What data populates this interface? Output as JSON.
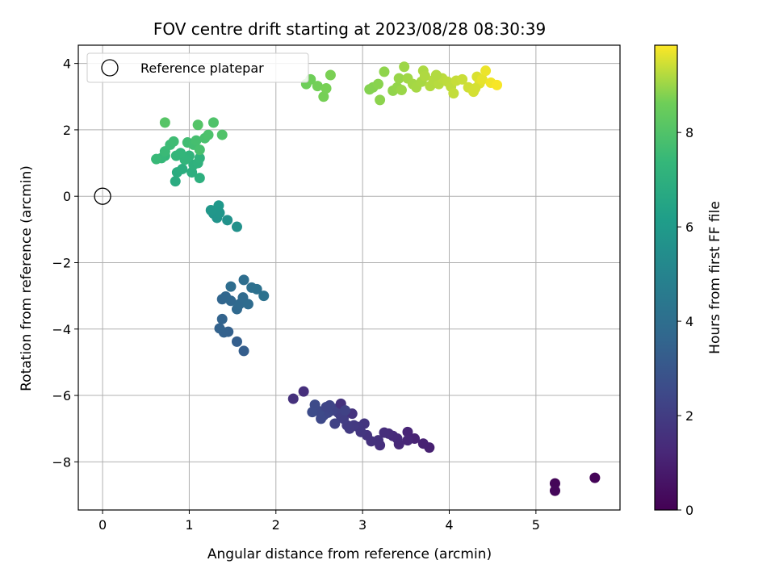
{
  "chart_data": {
    "type": "scatter",
    "title": "FOV centre drift starting at 2023/08/28 08:30:39",
    "xlabel": "Angular distance from reference (arcmin)",
    "ylabel": "Rotation from reference (arcmin)",
    "xlim": [
      -0.28,
      5.97
    ],
    "ylim": [
      -9.45,
      4.55
    ],
    "xticks": [
      0,
      1,
      2,
      3,
      4,
      5
    ],
    "xtick_labels": [
      "0",
      "1",
      "2",
      "3",
      "4",
      "5"
    ],
    "yticks": [
      -8,
      -6,
      -4,
      -2,
      0,
      2,
      4
    ],
    "ytick_labels": [
      "−8",
      "−6",
      "−4",
      "−2",
      "0",
      "2",
      "4"
    ],
    "grid": true,
    "legend": {
      "placement": "top-left",
      "entries": [
        "Reference platepar"
      ]
    },
    "colorbar": {
      "label": "Hours from first FF file",
      "range": [
        0,
        9.85
      ],
      "ticks": [
        0,
        2,
        4,
        6,
        8
      ],
      "tick_labels": [
        "0",
        "2",
        "4",
        "6",
        "8"
      ],
      "colormap": "viridis"
    },
    "reference_point": {
      "x": 0,
      "y": 0,
      "label": "Reference platepar"
    },
    "points": [
      {
        "x": 5.68,
        "y": -8.48,
        "h": 0.1
      },
      {
        "x": 5.22,
        "y": -8.65,
        "h": 0.15
      },
      {
        "x": 5.22,
        "y": -8.87,
        "h": 0.2
      },
      {
        "x": 3.77,
        "y": -7.57,
        "h": 1.0
      },
      {
        "x": 3.7,
        "y": -7.45,
        "h": 1.05
      },
      {
        "x": 3.6,
        "y": -7.3,
        "h": 1.1
      },
      {
        "x": 3.52,
        "y": -7.1,
        "h": 1.15
      },
      {
        "x": 3.52,
        "y": -7.35,
        "h": 1.2
      },
      {
        "x": 3.42,
        "y": -7.47,
        "h": 1.25
      },
      {
        "x": 3.4,
        "y": -7.3,
        "h": 1.3
      },
      {
        "x": 3.35,
        "y": -7.22,
        "h": 1.35
      },
      {
        "x": 3.3,
        "y": -7.15,
        "h": 1.4
      },
      {
        "x": 3.25,
        "y": -7.12,
        "h": 1.45
      },
      {
        "x": 3.2,
        "y": -7.5,
        "h": 1.5
      },
      {
        "x": 3.18,
        "y": -7.35,
        "h": 1.55
      },
      {
        "x": 3.1,
        "y": -7.38,
        "h": 1.6
      },
      {
        "x": 3.05,
        "y": -7.2,
        "h": 1.65
      },
      {
        "x": 3.02,
        "y": -6.85,
        "h": 1.7
      },
      {
        "x": 2.98,
        "y": -7.1,
        "h": 1.75
      },
      {
        "x": 2.95,
        "y": -6.95,
        "h": 1.8
      },
      {
        "x": 2.9,
        "y": -6.9,
        "h": 1.85
      },
      {
        "x": 2.85,
        "y": -7.0,
        "h": 1.9
      },
      {
        "x": 2.82,
        "y": -6.9,
        "h": 1.95
      },
      {
        "x": 2.78,
        "y": -6.7,
        "h": 2.0
      },
      {
        "x": 2.75,
        "y": -6.62,
        "h": 2.05
      },
      {
        "x": 2.72,
        "y": -6.52,
        "h": 2.1
      },
      {
        "x": 2.7,
        "y": -6.4,
        "h": 2.15
      },
      {
        "x": 2.68,
        "y": -6.85,
        "h": 2.2
      },
      {
        "x": 2.65,
        "y": -6.45,
        "h": 2.25
      },
      {
        "x": 2.62,
        "y": -6.3,
        "h": 2.3
      },
      {
        "x": 2.6,
        "y": -6.52,
        "h": 2.35
      },
      {
        "x": 2.55,
        "y": -6.6,
        "h": 2.4
      },
      {
        "x": 2.52,
        "y": -6.7,
        "h": 2.45
      },
      {
        "x": 2.5,
        "y": -6.48,
        "h": 2.5
      },
      {
        "x": 2.45,
        "y": -6.28,
        "h": 2.55
      },
      {
        "x": 2.42,
        "y": -6.5,
        "h": 2.6
      },
      {
        "x": 2.32,
        "y": -5.88,
        "h": 1.5
      },
      {
        "x": 2.2,
        "y": -6.1,
        "h": 1.55
      },
      {
        "x": 2.75,
        "y": -6.25,
        "h": 1.6
      },
      {
        "x": 2.88,
        "y": -6.55,
        "h": 1.65
      },
      {
        "x": 2.58,
        "y": -6.35,
        "h": 2.3
      },
      {
        "x": 2.8,
        "y": -6.45,
        "h": 2.2
      },
      {
        "x": 1.63,
        "y": -4.66,
        "h": 3.3
      },
      {
        "x": 1.55,
        "y": -4.38,
        "h": 3.35
      },
      {
        "x": 1.45,
        "y": -4.08,
        "h": 3.4
      },
      {
        "x": 1.4,
        "y": -4.1,
        "h": 3.45
      },
      {
        "x": 1.35,
        "y": -3.98,
        "h": 3.5
      },
      {
        "x": 1.38,
        "y": -3.7,
        "h": 3.55
      },
      {
        "x": 1.38,
        "y": -3.1,
        "h": 3.6
      },
      {
        "x": 1.42,
        "y": -3.02,
        "h": 3.65
      },
      {
        "x": 1.48,
        "y": -3.15,
        "h": 3.7
      },
      {
        "x": 1.55,
        "y": -3.4,
        "h": 3.75
      },
      {
        "x": 1.58,
        "y": -3.25,
        "h": 3.8
      },
      {
        "x": 1.62,
        "y": -3.05,
        "h": 3.85
      },
      {
        "x": 1.68,
        "y": -3.25,
        "h": 3.9
      },
      {
        "x": 1.48,
        "y": -2.72,
        "h": 3.95
      },
      {
        "x": 1.63,
        "y": -2.52,
        "h": 4.0
      },
      {
        "x": 1.72,
        "y": -2.75,
        "h": 4.05
      },
      {
        "x": 1.78,
        "y": -2.8,
        "h": 4.1
      },
      {
        "x": 1.86,
        "y": -3.0,
        "h": 4.15
      },
      {
        "x": 1.55,
        "y": -0.92,
        "h": 5.6
      },
      {
        "x": 1.44,
        "y": -0.72,
        "h": 5.65
      },
      {
        "x": 1.32,
        "y": -0.65,
        "h": 5.7
      },
      {
        "x": 1.28,
        "y": -0.52,
        "h": 5.75
      },
      {
        "x": 1.35,
        "y": -0.5,
        "h": 5.8
      },
      {
        "x": 1.25,
        "y": -0.42,
        "h": 5.85
      },
      {
        "x": 1.34,
        "y": -0.28,
        "h": 5.9
      },
      {
        "x": 0.84,
        "y": 0.45,
        "h": 6.8
      },
      {
        "x": 0.86,
        "y": 0.72,
        "h": 6.85
      },
      {
        "x": 0.92,
        "y": 0.82,
        "h": 6.9
      },
      {
        "x": 1.03,
        "y": 0.72,
        "h": 6.95
      },
      {
        "x": 1.12,
        "y": 0.55,
        "h": 7.0
      },
      {
        "x": 1.05,
        "y": 0.95,
        "h": 7.05
      },
      {
        "x": 1.1,
        "y": 1.0,
        "h": 7.1
      },
      {
        "x": 1.12,
        "y": 1.15,
        "h": 7.15
      },
      {
        "x": 1.0,
        "y": 1.22,
        "h": 7.2
      },
      {
        "x": 0.95,
        "y": 1.1,
        "h": 7.25
      },
      {
        "x": 0.85,
        "y": 1.22,
        "h": 7.3
      },
      {
        "x": 0.72,
        "y": 1.22,
        "h": 7.35
      },
      {
        "x": 0.68,
        "y": 1.15,
        "h": 7.4
      },
      {
        "x": 0.62,
        "y": 1.12,
        "h": 7.45
      },
      {
        "x": 0.72,
        "y": 1.35,
        "h": 7.5
      },
      {
        "x": 0.78,
        "y": 1.55,
        "h": 7.55
      },
      {
        "x": 0.82,
        "y": 1.65,
        "h": 7.6
      },
      {
        "x": 0.98,
        "y": 1.62,
        "h": 7.65
      },
      {
        "x": 1.05,
        "y": 1.55,
        "h": 7.7
      },
      {
        "x": 1.08,
        "y": 1.68,
        "h": 7.75
      },
      {
        "x": 1.12,
        "y": 1.4,
        "h": 7.8
      },
      {
        "x": 1.18,
        "y": 1.75,
        "h": 7.85
      },
      {
        "x": 1.22,
        "y": 1.85,
        "h": 7.9
      },
      {
        "x": 1.28,
        "y": 2.22,
        "h": 7.95
      },
      {
        "x": 1.38,
        "y": 1.85,
        "h": 8.0
      },
      {
        "x": 1.1,
        "y": 2.15,
        "h": 8.05
      },
      {
        "x": 0.72,
        "y": 2.22,
        "h": 8.1
      },
      {
        "x": 0.9,
        "y": 1.3,
        "h": 7.3
      },
      {
        "x": 2.35,
        "y": 3.38,
        "h": 8.6
      },
      {
        "x": 2.4,
        "y": 3.52,
        "h": 8.62
      },
      {
        "x": 2.48,
        "y": 3.32,
        "h": 8.65
      },
      {
        "x": 2.55,
        "y": 3.0,
        "h": 8.68
      },
      {
        "x": 2.58,
        "y": 3.25,
        "h": 8.7
      },
      {
        "x": 2.63,
        "y": 3.65,
        "h": 8.72
      },
      {
        "x": 3.08,
        "y": 3.22,
        "h": 8.8
      },
      {
        "x": 3.12,
        "y": 3.28,
        "h": 8.82
      },
      {
        "x": 3.18,
        "y": 3.38,
        "h": 8.85
      },
      {
        "x": 3.2,
        "y": 2.9,
        "h": 8.88
      },
      {
        "x": 3.25,
        "y": 3.75,
        "h": 8.9
      },
      {
        "x": 3.35,
        "y": 3.18,
        "h": 8.92
      },
      {
        "x": 3.4,
        "y": 3.28,
        "h": 8.95
      },
      {
        "x": 3.42,
        "y": 3.55,
        "h": 8.98
      },
      {
        "x": 3.45,
        "y": 3.2,
        "h": 9.0
      },
      {
        "x": 3.48,
        "y": 3.9,
        "h": 9.02
      },
      {
        "x": 3.52,
        "y": 3.55,
        "h": 9.05
      },
      {
        "x": 3.58,
        "y": 3.38,
        "h": 9.08
      },
      {
        "x": 3.62,
        "y": 3.28,
        "h": 9.1
      },
      {
        "x": 3.68,
        "y": 3.45,
        "h": 9.12
      },
      {
        "x": 3.7,
        "y": 3.78,
        "h": 9.15
      },
      {
        "x": 3.72,
        "y": 3.62,
        "h": 9.18
      },
      {
        "x": 3.78,
        "y": 3.32,
        "h": 9.2
      },
      {
        "x": 3.82,
        "y": 3.5,
        "h": 9.22
      },
      {
        "x": 3.88,
        "y": 3.38,
        "h": 9.25
      },
      {
        "x": 3.92,
        "y": 3.55,
        "h": 9.28
      },
      {
        "x": 3.98,
        "y": 3.45,
        "h": 9.3
      },
      {
        "x": 4.02,
        "y": 3.3,
        "h": 9.32
      },
      {
        "x": 4.05,
        "y": 3.1,
        "h": 9.35
      },
      {
        "x": 4.08,
        "y": 3.48,
        "h": 9.38
      },
      {
        "x": 4.15,
        "y": 3.52,
        "h": 9.4
      },
      {
        "x": 4.22,
        "y": 3.28,
        "h": 9.45
      },
      {
        "x": 4.28,
        "y": 3.15,
        "h": 9.5
      },
      {
        "x": 4.32,
        "y": 3.6,
        "h": 9.55
      },
      {
        "x": 4.35,
        "y": 3.4,
        "h": 9.6
      },
      {
        "x": 4.38,
        "y": 3.52,
        "h": 9.65
      },
      {
        "x": 4.42,
        "y": 3.78,
        "h": 9.7
      },
      {
        "x": 4.48,
        "y": 3.42,
        "h": 9.75
      },
      {
        "x": 4.55,
        "y": 3.35,
        "h": 9.8
      },
      {
        "x": 3.85,
        "y": 3.65,
        "h": 9.2
      },
      {
        "x": 4.3,
        "y": 3.25,
        "h": 9.5
      }
    ]
  }
}
